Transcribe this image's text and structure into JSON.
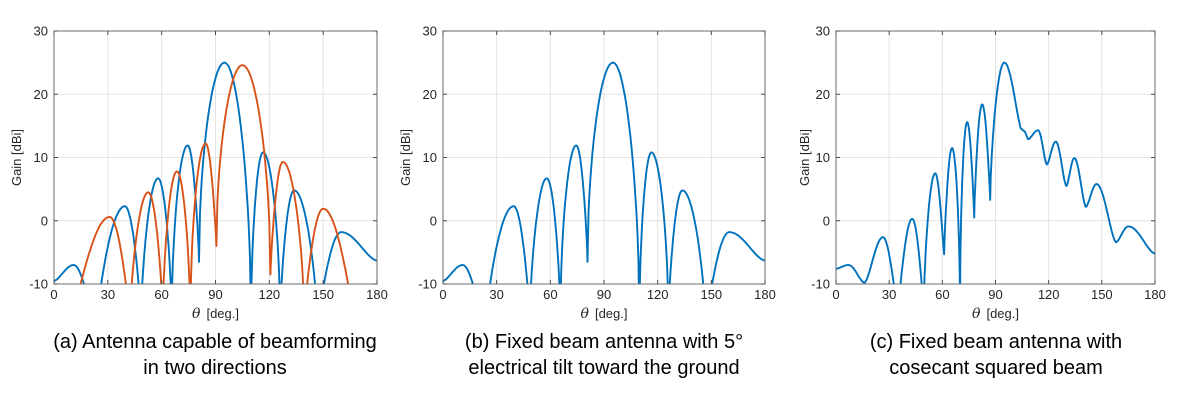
{
  "figure": {
    "background": "#ffffff"
  },
  "style": {
    "axis_color": "#6b6b6b",
    "tick_color": "#4a4a4a",
    "tick_label_color": "#262626",
    "grid_color": "#e3e3e3",
    "caption_color": "#000000",
    "series_line_width": 1.9
  },
  "chart_data": [
    {
      "id": "a",
      "type": "line",
      "caption": {
        "line1": "(a) Antenna capable of beamforming",
        "line2": "in two directions"
      },
      "xlabel": {
        "symbol": "θ",
        "unit": "[deg.]"
      },
      "ylabel": "Gain [dBi]",
      "xlim": [
        0,
        180
      ],
      "ylim": [
        -10,
        30
      ],
      "x_ticks": [
        0,
        30,
        60,
        90,
        120,
        150,
        180
      ],
      "y_ticks": [
        -10,
        0,
        10,
        20,
        30
      ],
      "grid": true,
      "series": [
        {
          "color": "#0072BD",
          "peak": {
            "theta_deg": 95,
            "gain_dBi": 25.0
          },
          "keypoints": [
            [
              0,
              -9.5
            ],
            [
              11,
              -7.0
            ],
            [
              24,
              -16
            ],
            [
              39.5,
              2.3
            ],
            [
              48.5,
              -16
            ],
            [
              58,
              6.7
            ],
            [
              65.6,
              -16
            ],
            [
              74.5,
              11.9
            ],
            [
              80.8,
              -6.5
            ],
            [
              95,
              25.0
            ],
            [
              109.8,
              -16
            ],
            [
              116.5,
              10.8
            ],
            [
              126,
              -16
            ],
            [
              133.8,
              4.8
            ],
            [
              146.8,
              -16
            ],
            [
              160,
              -1.8
            ],
            [
              180,
              -6.3
            ]
          ]
        },
        {
          "color": "#D95319",
          "peak": {
            "theta_deg": 105,
            "gain_dBi": 24.6
          },
          "keypoints": [
            [
              12,
              -13
            ],
            [
              31,
              0.6
            ],
            [
              42.2,
              -16
            ],
            [
              52.5,
              4.5
            ],
            [
              60.6,
              -16
            ],
            [
              68.5,
              7.8
            ],
            [
              76,
              -16
            ],
            [
              84.5,
              12.2
            ],
            [
              90.5,
              -4.0
            ],
            [
              105,
              24.6
            ],
            [
              120.6,
              -8.5
            ],
            [
              127.5,
              9.3
            ],
            [
              139.4,
              -16
            ],
            [
              150,
              1.9
            ],
            [
              166,
              -14
            ]
          ]
        }
      ]
    },
    {
      "id": "b",
      "type": "line",
      "caption": {
        "line1": "(b) Fixed beam antenna with 5°",
        "line2": "electrical tilt toward the ground"
      },
      "xlabel": {
        "symbol": "θ",
        "unit": "[deg.]"
      },
      "ylabel": "Gain [dBi]",
      "xlim": [
        0,
        180
      ],
      "ylim": [
        -10,
        30
      ],
      "x_ticks": [
        0,
        30,
        60,
        90,
        120,
        150,
        180
      ],
      "y_ticks": [
        -10,
        0,
        10,
        20,
        30
      ],
      "grid": true,
      "series": [
        {
          "color": "#0072BD",
          "peak": {
            "theta_deg": 95,
            "gain_dBi": 25.0
          },
          "keypoints": [
            [
              0,
              -9.5
            ],
            [
              11,
              -7.0
            ],
            [
              24,
              -16
            ],
            [
              39.5,
              2.3
            ],
            [
              48.5,
              -16
            ],
            [
              58,
              6.7
            ],
            [
              65.6,
              -16
            ],
            [
              74.5,
              11.9
            ],
            [
              80.8,
              -6.5
            ],
            [
              95,
              25.0
            ],
            [
              109.8,
              -16
            ],
            [
              116.5,
              10.8
            ],
            [
              126,
              -16
            ],
            [
              133.8,
              4.8
            ],
            [
              146.8,
              -16
            ],
            [
              160,
              -1.8
            ],
            [
              180,
              -6.3
            ]
          ]
        }
      ]
    },
    {
      "id": "c",
      "type": "line",
      "caption": {
        "line1": "(c) Fixed beam antenna with",
        "line2": "cosecant squared beam"
      },
      "xlabel": {
        "symbol": "θ",
        "unit": "[deg.]"
      },
      "ylabel": "Gain [dBi]",
      "xlim": [
        0,
        180
      ],
      "ylim": [
        -10,
        30
      ],
      "x_ticks": [
        0,
        30,
        60,
        90,
        120,
        150,
        180
      ],
      "y_ticks": [
        -10,
        0,
        10,
        20,
        30
      ],
      "grid": true,
      "series": [
        {
          "color": "#0072BD",
          "peak": {
            "theta_deg": 95,
            "gain_dBi": 25.0
          },
          "keypoints": [
            [
              0,
              -7.6
            ],
            [
              7,
              -7.0
            ],
            [
              16,
              -9.8
            ],
            [
              26.5,
              -2.6
            ],
            [
              35,
              -14
            ],
            [
              43,
              0.3
            ],
            [
              49.5,
              -14
            ],
            [
              56,
              7.5
            ],
            [
              61,
              -5.3
            ],
            [
              65.5,
              11.5
            ],
            [
              70,
              -14
            ],
            [
              74,
              15.6
            ],
            [
              78,
              0.5
            ],
            [
              82.5,
              18.4
            ],
            [
              87,
              3.3
            ],
            [
              95,
              25.0
            ],
            [
              104.5,
              14.5
            ],
            [
              106,
              14.2
            ],
            [
              108.5,
              12.9
            ],
            [
              114,
              14.3
            ],
            [
              119,
              8.9
            ],
            [
              124,
              12.5
            ],
            [
              130,
              5.5
            ],
            [
              134.5,
              9.9
            ],
            [
              141,
              2.2
            ],
            [
              147,
              5.8
            ],
            [
              158,
              -3.4
            ],
            [
              165,
              -0.9
            ],
            [
              180,
              -5.2
            ]
          ]
        }
      ]
    }
  ]
}
